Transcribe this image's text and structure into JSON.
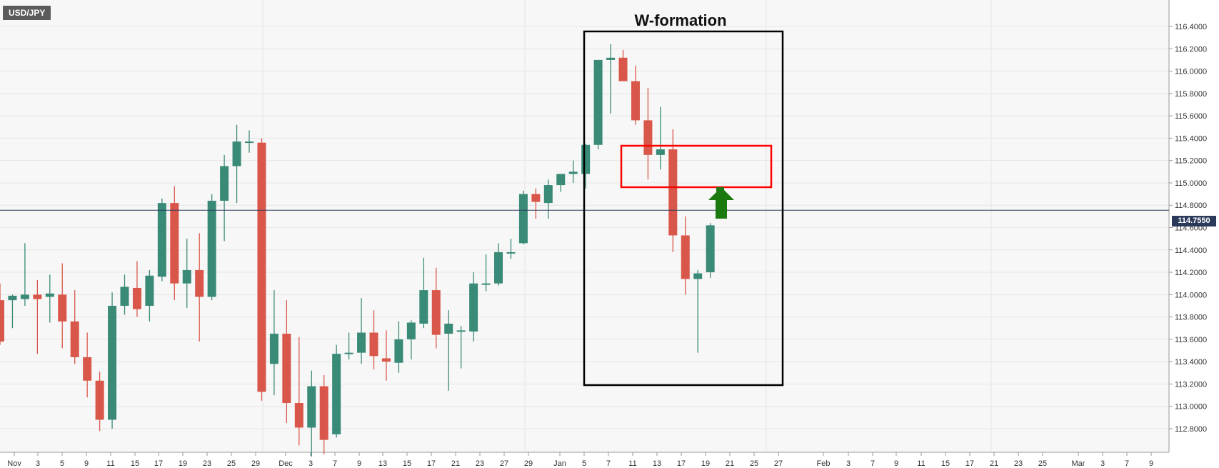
{
  "symbol": "USD/JPY",
  "current_price_label": "114.7550",
  "colors": {
    "up": "#3a8a78",
    "down": "#d9574a",
    "grid": "#e6e6e6",
    "plot_bg": "#f7f7f7",
    "price_line": "#2b3a5a",
    "box_border": "#000000",
    "zone_border": "#ff0000",
    "arrow": "#1a7a10"
  },
  "annotations": {
    "w_formation_label": "W-formation",
    "arrow_icon": "up-arrow-icon"
  },
  "chart_data": {
    "type": "candlestick",
    "title": "",
    "xlabel": "",
    "ylabel": "",
    "ylim": [
      112.8,
      116.4
    ],
    "grid": true,
    "current_price": 114.755,
    "y_ticks": [
      "112.8000",
      "113.0000",
      "113.2000",
      "113.4000",
      "113.6000",
      "113.8000",
      "114.0000",
      "114.2000",
      "114.4000",
      "114.6000",
      "114.8000",
      "115.0000",
      "115.2000",
      "115.4000",
      "115.6000",
      "115.8000",
      "116.0000",
      "116.2000",
      "116.4000"
    ],
    "x_ticks": [
      "Nov",
      "3",
      "5",
      "9",
      "11",
      "15",
      "17",
      "19",
      "23",
      "25",
      "29",
      "Dec",
      "3",
      "7",
      "9",
      "13",
      "15",
      "17",
      "21",
      "23",
      "27",
      "29",
      "Jan",
      "5",
      "7",
      "11",
      "13",
      "17",
      "19",
      "21",
      "25",
      "27",
      "Feb",
      "3",
      "7",
      "9",
      "11",
      "15",
      "17",
      "21",
      "23",
      "25",
      "Mar",
      "3",
      "7",
      "9"
    ],
    "candles": [
      {
        "open": 113.95,
        "high": 114.1,
        "low": 113.55,
        "close": 113.58
      },
      {
        "open": 113.95,
        "high": 114.0,
        "low": 113.7,
        "close": 113.99
      },
      {
        "open": 113.96,
        "high": 114.46,
        "low": 113.9,
        "close": 114.0
      },
      {
        "open": 114.0,
        "high": 114.13,
        "low": 113.47,
        "close": 113.96
      },
      {
        "open": 113.98,
        "high": 114.18,
        "low": 113.75,
        "close": 114.01
      },
      {
        "open": 114.0,
        "high": 114.28,
        "low": 113.52,
        "close": 113.76
      },
      {
        "open": 113.76,
        "high": 114.04,
        "low": 113.38,
        "close": 113.44
      },
      {
        "open": 113.44,
        "high": 113.66,
        "low": 113.08,
        "close": 113.23
      },
      {
        "open": 113.23,
        "high": 113.31,
        "low": 112.78,
        "close": 112.88
      },
      {
        "open": 112.88,
        "high": 114.02,
        "low": 112.8,
        "close": 113.9
      },
      {
        "open": 113.9,
        "high": 114.18,
        "low": 113.82,
        "close": 114.07
      },
      {
        "open": 114.06,
        "high": 114.3,
        "low": 113.8,
        "close": 113.87
      },
      {
        "open": 113.9,
        "high": 114.22,
        "low": 113.76,
        "close": 114.17
      },
      {
        "open": 114.16,
        "high": 114.86,
        "low": 114.12,
        "close": 114.82
      },
      {
        "open": 114.82,
        "high": 114.97,
        "low": 113.95,
        "close": 114.1
      },
      {
        "open": 114.1,
        "high": 114.5,
        "low": 113.88,
        "close": 114.22
      },
      {
        "open": 114.22,
        "high": 114.55,
        "low": 113.58,
        "close": 113.98
      },
      {
        "open": 113.98,
        "high": 114.9,
        "low": 113.95,
        "close": 114.84
      },
      {
        "open": 114.84,
        "high": 115.25,
        "low": 114.48,
        "close": 115.15
      },
      {
        "open": 115.15,
        "high": 115.52,
        "low": 114.82,
        "close": 115.37
      },
      {
        "open": 115.37,
        "high": 115.47,
        "low": 115.27,
        "close": 115.37
      },
      {
        "open": 115.36,
        "high": 115.4,
        "low": 113.05,
        "close": 113.13
      },
      {
        "open": 113.38,
        "high": 114.04,
        "low": 113.1,
        "close": 113.65
      },
      {
        "open": 113.65,
        "high": 113.95,
        "low": 112.85,
        "close": 113.03
      },
      {
        "open": 113.03,
        "high": 113.62,
        "low": 112.65,
        "close": 112.81
      },
      {
        "open": 112.81,
        "high": 113.32,
        "low": 112.55,
        "close": 113.18
      },
      {
        "open": 113.18,
        "high": 113.28,
        "low": 112.57,
        "close": 112.7
      },
      {
        "open": 112.75,
        "high": 113.55,
        "low": 112.72,
        "close": 113.47
      },
      {
        "open": 113.47,
        "high": 113.66,
        "low": 113.42,
        "close": 113.48
      },
      {
        "open": 113.48,
        "high": 113.97,
        "low": 113.38,
        "close": 113.66
      },
      {
        "open": 113.66,
        "high": 113.86,
        "low": 113.33,
        "close": 113.45
      },
      {
        "open": 113.43,
        "high": 113.68,
        "low": 113.23,
        "close": 113.4
      },
      {
        "open": 113.39,
        "high": 113.76,
        "low": 113.3,
        "close": 113.6
      },
      {
        "open": 113.6,
        "high": 113.77,
        "low": 113.42,
        "close": 113.75
      },
      {
        "open": 113.74,
        "high": 114.33,
        "low": 113.7,
        "close": 114.04
      },
      {
        "open": 114.04,
        "high": 114.24,
        "low": 113.52,
        "close": 113.64
      },
      {
        "open": 113.65,
        "high": 113.86,
        "low": 113.14,
        "close": 113.74
      },
      {
        "open": 113.67,
        "high": 113.72,
        "low": 113.34,
        "close": 113.68
      },
      {
        "open": 113.67,
        "high": 114.2,
        "low": 113.58,
        "close": 114.1
      },
      {
        "open": 114.09,
        "high": 114.36,
        "low": 114.03,
        "close": 114.1
      },
      {
        "open": 114.1,
        "high": 114.46,
        "low": 114.08,
        "close": 114.38
      },
      {
        "open": 114.38,
        "high": 114.5,
        "low": 114.32,
        "close": 114.38
      },
      {
        "open": 114.46,
        "high": 114.93,
        "low": 114.45,
        "close": 114.9
      },
      {
        "open": 114.9,
        "high": 114.95,
        "low": 114.68,
        "close": 114.83
      },
      {
        "open": 114.82,
        "high": 115.03,
        "low": 114.68,
        "close": 114.98
      },
      {
        "open": 114.98,
        "high": 115.08,
        "low": 114.92,
        "close": 115.08
      },
      {
        "open": 115.08,
        "high": 115.2,
        "low": 115.0,
        "close": 115.1
      },
      {
        "open": 115.08,
        "high": 115.35,
        "low": 114.95,
        "close": 115.34
      },
      {
        "open": 115.34,
        "high": 116.1,
        "low": 115.3,
        "close": 116.1
      },
      {
        "open": 116.1,
        "high": 116.24,
        "low": 115.62,
        "close": 116.12
      },
      {
        "open": 116.12,
        "high": 116.19,
        "low": 115.92,
        "close": 115.91
      },
      {
        "open": 115.91,
        "high": 116.05,
        "low": 115.52,
        "close": 115.56
      },
      {
        "open": 115.56,
        "high": 115.85,
        "low": 115.03,
        "close": 115.25
      },
      {
        "open": 115.25,
        "high": 115.68,
        "low": 115.12,
        "close": 115.3
      },
      {
        "open": 115.3,
        "high": 115.48,
        "low": 114.38,
        "close": 114.53
      },
      {
        "open": 114.53,
        "high": 114.7,
        "low": 114.0,
        "close": 114.14
      },
      {
        "open": 114.14,
        "high": 114.22,
        "low": 113.48,
        "close": 114.19
      },
      {
        "open": 114.2,
        "high": 114.64,
        "low": 114.15,
        "close": 114.62
      },
      {
        "open": 114.75,
        "high": 114.77,
        "low": 114.73,
        "close": 114.77
      }
    ]
  }
}
